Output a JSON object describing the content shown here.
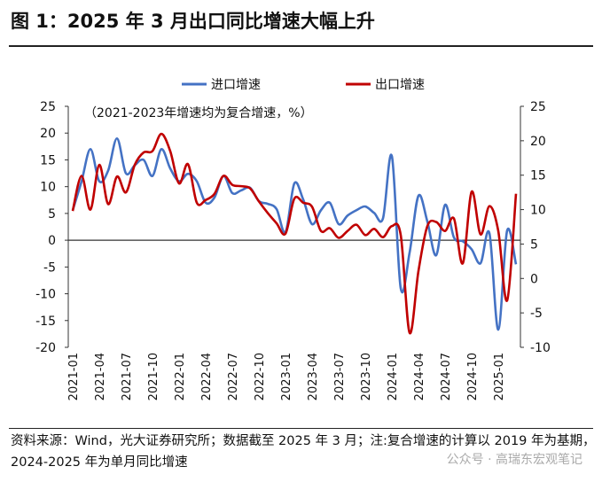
{
  "title": "图 1：2025 年 3 月出口同比增速大幅上升",
  "note": "资料来源：Wind，光大证券研究所；数据截至 2025 年 3 月；注:复合增速的计算以 2019 年为基期，2024-2025 年为单月同比增速",
  "watermark": "公众号 · 高瑞东宏观笔记",
  "chart_data": {
    "type": "line",
    "annotation": "（2021-2023年增速均为复合增速，%）",
    "legend_position": "top",
    "grid": false,
    "x_tick_labels": [
      "2021-01",
      "2021-04",
      "2021-07",
      "2021-10",
      "2022-01",
      "2022-04",
      "2022-07",
      "2022-10",
      "2023-01",
      "2023-04",
      "2023-07",
      "2023-10",
      "2024-01",
      "2024-04",
      "2024-07",
      "2024-10",
      "2025-01"
    ],
    "x_start": "2021-01",
    "x_end": "2025-03",
    "y_left": {
      "range": [
        -20,
        25
      ],
      "ticks": [
        -20,
        -15,
        -10,
        -5,
        0,
        5,
        10,
        15,
        20,
        25
      ]
    },
    "y_right": {
      "range": [
        -10,
        25
      ],
      "ticks": [
        -10,
        -5,
        0,
        5,
        10,
        15,
        20,
        25
      ]
    },
    "series": [
      {
        "name": "进口增速",
        "axis": "left",
        "color": "#4472C4",
        "values": [
          5.6,
          11,
          17,
          11,
          13,
          19,
          12.5,
          14,
          15,
          12,
          17,
          13.4,
          11,
          12.4,
          11,
          7,
          8,
          12,
          8.8,
          9.3,
          9.8,
          7.3,
          6.8,
          5.8,
          1.5,
          10.6,
          7.6,
          3,
          5.6,
          7,
          3,
          4.6,
          5.6,
          6.3,
          5.1,
          4.1,
          15.7,
          -9,
          -2.3,
          8.3,
          3.5,
          -2.8,
          6.6,
          0.5,
          -0.2,
          -1.7,
          -4.3,
          1.3,
          -16.7,
          1.8,
          -4.5
        ]
      },
      {
        "name": "出口增速",
        "axis": "right",
        "color": "#C00000",
        "values": [
          9.8,
          14.9,
          10,
          16.5,
          10.8,
          14.8,
          12.5,
          16.5,
          18.3,
          18.5,
          21,
          18.5,
          13.8,
          16.6,
          11,
          11.4,
          12.3,
          14.9,
          13.6,
          13.4,
          13.1,
          11.2,
          9.5,
          8,
          6.5,
          11.6,
          11,
          10.4,
          6.9,
          7.3,
          5.9,
          6.9,
          7.8,
          6.3,
          7.2,
          6,
          7.6,
          6.3,
          -7.9,
          1.1,
          7.6,
          8.2,
          6.9,
          8.7,
          2.2,
          12.6,
          6.4,
          10.5,
          6.9,
          -3.2,
          12.3
        ]
      }
    ]
  }
}
